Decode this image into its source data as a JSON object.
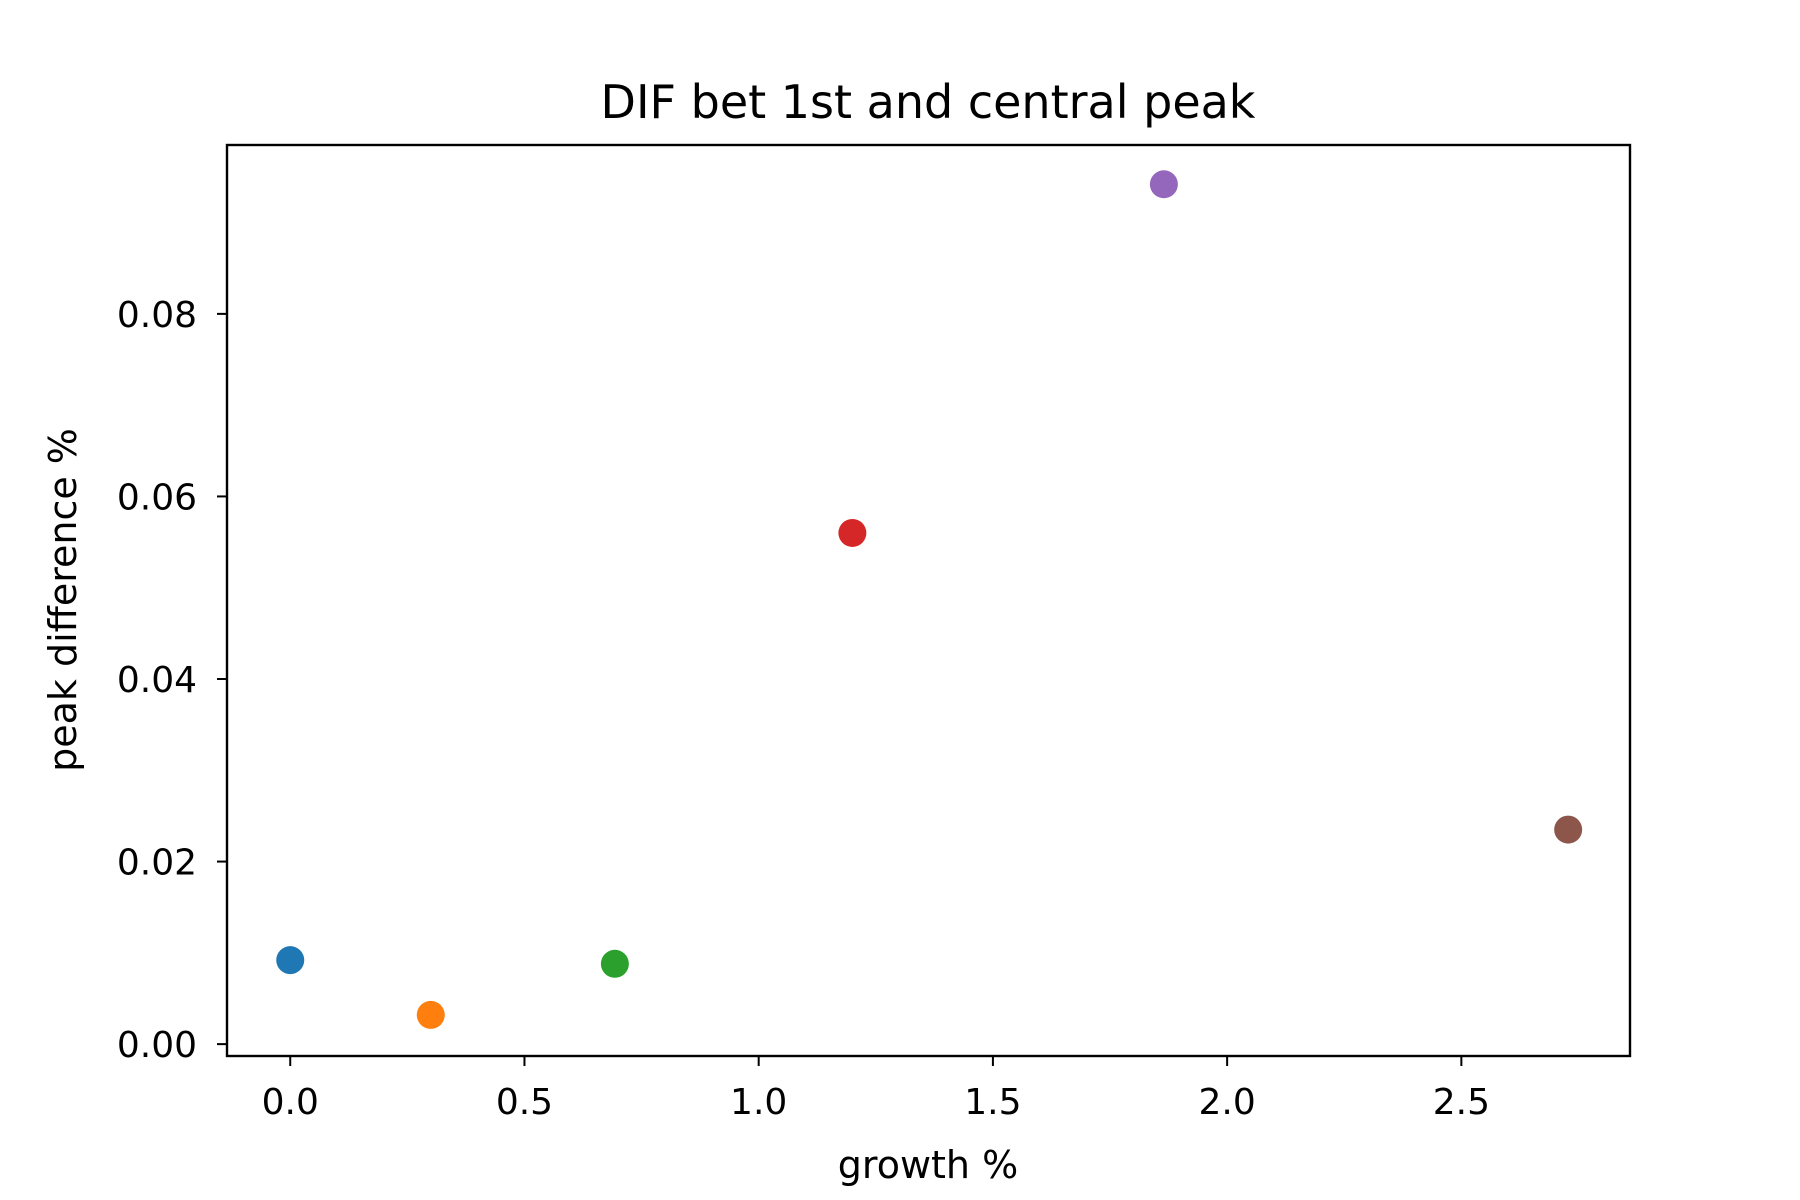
{
  "chart_data": {
    "type": "scatter",
    "title": "DIF bet 1st and central peak",
    "xlabel": "growth %",
    "ylabel": "peak difference %",
    "xlim": [
      -0.135,
      2.86
    ],
    "ylim": [
      -0.0013,
      0.0985
    ],
    "xticks": [
      0.0,
      0.5,
      1.0,
      1.5,
      2.0,
      2.5
    ],
    "xtick_labels": [
      "0.0",
      "0.5",
      "1.0",
      "1.5",
      "2.0",
      "2.5"
    ],
    "yticks": [
      0.0,
      0.02,
      0.04,
      0.06,
      0.08
    ],
    "ytick_labels": [
      "0.00",
      "0.02",
      "0.04",
      "0.06",
      "0.08"
    ],
    "grid": false,
    "legend": "none",
    "points": [
      {
        "x": 0.0,
        "y": 0.0092,
        "color": "#1f77b4"
      },
      {
        "x": 0.3,
        "y": 0.0032,
        "color": "#ff7f0e"
      },
      {
        "x": 0.693,
        "y": 0.0088,
        "color": "#2ca02c"
      },
      {
        "x": 1.2,
        "y": 0.056,
        "color": "#d62728"
      },
      {
        "x": 1.865,
        "y": 0.0942,
        "color": "#9467bd"
      },
      {
        "x": 2.728,
        "y": 0.0235,
        "color": "#8c564b"
      }
    ]
  }
}
